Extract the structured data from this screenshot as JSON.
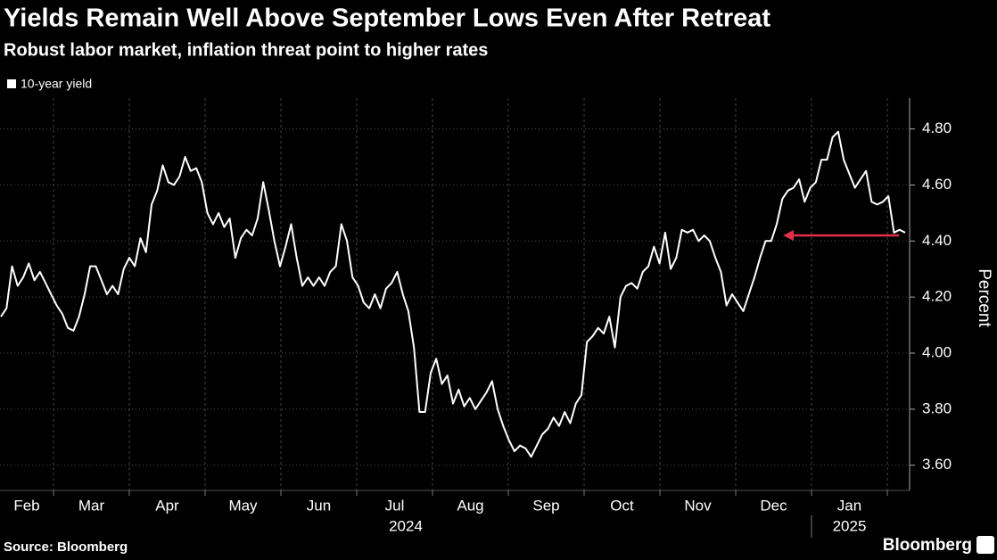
{
  "chart_data": {
    "type": "line",
    "title": "Yields Remain Well Above September Lows Even After Retreat",
    "subtitle": "Robust labor market, inflation threat point to higher rates",
    "y_label": "Percent",
    "source": "Source: Bloomberg",
    "brand": "Bloomberg",
    "months": [
      "Feb",
      "Mar",
      "Apr",
      "May",
      "Jun",
      "Jul",
      "Aug",
      "Sep",
      "Oct",
      "Nov",
      "Dec",
      "Jan"
    ],
    "years": [
      "2024",
      "2025"
    ],
    "ylim": [
      3.51,
      4.91
    ],
    "yticks": [
      {
        "value": 3.6,
        "label": "3.60"
      },
      {
        "value": 3.8,
        "label": "3.80"
      },
      {
        "value": 4.0,
        "label": "4.00"
      },
      {
        "value": 4.2,
        "label": "4.20"
      },
      {
        "value": 4.4,
        "label": "4.40"
      },
      {
        "value": 4.6,
        "label": "4.60"
      },
      {
        "value": 4.8,
        "label": "4.80"
      }
    ],
    "grid": true,
    "annotation_arrow": {
      "y": 4.42,
      "color": "#e0304b"
    },
    "series": [
      {
        "name": "10-year yield",
        "color": "#ffffff",
        "values": [
          4.13,
          4.16,
          4.31,
          4.24,
          4.27,
          4.32,
          4.26,
          4.29,
          4.25,
          4.21,
          4.17,
          4.14,
          4.09,
          4.08,
          4.13,
          4.21,
          4.31,
          4.31,
          4.26,
          4.21,
          4.24,
          4.21,
          4.3,
          4.34,
          4.31,
          4.41,
          4.36,
          4.53,
          4.58,
          4.67,
          4.61,
          4.6,
          4.63,
          4.7,
          4.65,
          4.66,
          4.61,
          4.5,
          4.46,
          4.5,
          4.45,
          4.48,
          4.34,
          4.41,
          4.44,
          4.42,
          4.48,
          4.61,
          4.51,
          4.4,
          4.31,
          4.38,
          4.46,
          4.34,
          4.24,
          4.27,
          4.24,
          4.27,
          4.24,
          4.29,
          4.31,
          4.46,
          4.4,
          4.27,
          4.24,
          4.18,
          4.16,
          4.21,
          4.16,
          4.23,
          4.25,
          4.29,
          4.21,
          4.15,
          4.02,
          3.79,
          3.79,
          3.93,
          3.98,
          3.89,
          3.92,
          3.82,
          3.87,
          3.81,
          3.84,
          3.8,
          3.83,
          3.86,
          3.9,
          3.8,
          3.74,
          3.69,
          3.65,
          3.67,
          3.66,
          3.63,
          3.67,
          3.71,
          3.73,
          3.77,
          3.74,
          3.79,
          3.75,
          3.82,
          3.85,
          4.04,
          4.06,
          4.09,
          4.07,
          4.13,
          4.02,
          4.2,
          4.24,
          4.25,
          4.23,
          4.29,
          4.31,
          4.38,
          4.32,
          4.43,
          4.3,
          4.34,
          4.44,
          4.43,
          4.44,
          4.4,
          4.42,
          4.4,
          4.34,
          4.29,
          4.17,
          4.21,
          4.18,
          4.15,
          4.21,
          4.27,
          4.34,
          4.4,
          4.4,
          4.46,
          4.55,
          4.58,
          4.59,
          4.62,
          4.54,
          4.59,
          4.61,
          4.69,
          4.69,
          4.77,
          4.79,
          4.69,
          4.64,
          4.59,
          4.62,
          4.65,
          4.54,
          4.53,
          4.54,
          4.56,
          4.43,
          4.44,
          4.43
        ]
      }
    ]
  }
}
